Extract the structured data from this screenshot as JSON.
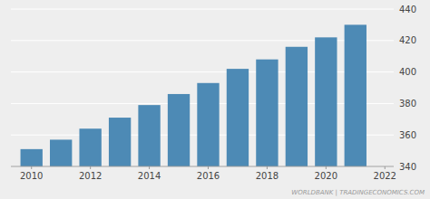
{
  "chart_data": {
    "type": "bar",
    "x": [
      2010,
      2011,
      2012,
      2013,
      2014,
      2015,
      2016,
      2017,
      2018,
      2019,
      2020,
      2021
    ],
    "values": [
      351,
      357,
      364,
      371,
      379,
      386,
      393,
      402,
      408,
      416,
      422,
      430
    ],
    "color": "#4d8ab5",
    "xlim": [
      2009.3,
      2022.3
    ],
    "xticks": [
      2010,
      2012,
      2014,
      2016,
      2018,
      2020,
      2022
    ],
    "ylim": [
      340,
      440
    ],
    "yticks": [
      340,
      360,
      380,
      400,
      420,
      440
    ],
    "grid": true,
    "annotations": [
      "WORLDBANK | TRADINGECONOMICS.COM"
    ]
  }
}
